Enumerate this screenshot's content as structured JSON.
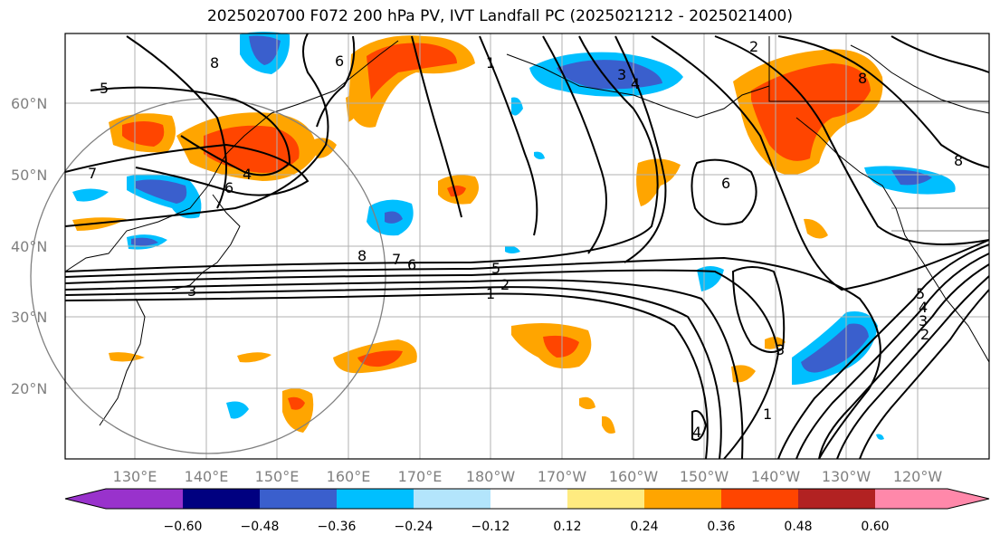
{
  "title": "2025020700 F072 200 hPa PV, IVT Landfall PC (2025021212 - 2025021400)",
  "map": {
    "lat_labels": [
      "60°N",
      "50°N",
      "40°N",
      "30°N",
      "20°N"
    ],
    "lon_labels": [
      "130°E",
      "140°E",
      "150°E",
      "160°E",
      "170°E",
      "180°W",
      "170°W",
      "160°W",
      "150°W",
      "140°W",
      "130°W",
      "120°W"
    ],
    "contour_labels": {
      "c1": "1",
      "c2": "2",
      "c3": "3",
      "c4": "4",
      "c5": "5",
      "c6": "6",
      "c7": "7",
      "c8": "8",
      "d1": "1",
      "d2": "2",
      "d3": "3",
      "d4": "4",
      "d5": "5",
      "d6": "6",
      "d7": "7",
      "d8": "8",
      "e1": "1",
      "e2": "2",
      "e3": "3",
      "e4": "4",
      "e5": "5",
      "e6": "6",
      "e7": "7",
      "e8": "8"
    }
  },
  "colorbar": {
    "tick_labels": [
      "−0.60",
      "−0.48",
      "−0.36",
      "−0.24",
      "−0.12",
      "0.12",
      "0.24",
      "0.36",
      "0.48",
      "0.60"
    ],
    "colors": {
      "under": "#9932cc",
      "b1": "#000080",
      "b2": "#3a5fcd",
      "b3": "#00bfff",
      "b4": "#b3e5fc",
      "b5": "#ffffff",
      "b6": "#ffeb80",
      "b7": "#ffa500",
      "b8": "#ff4500",
      "b9": "#b22222",
      "over": "#ff88aa"
    }
  }
}
